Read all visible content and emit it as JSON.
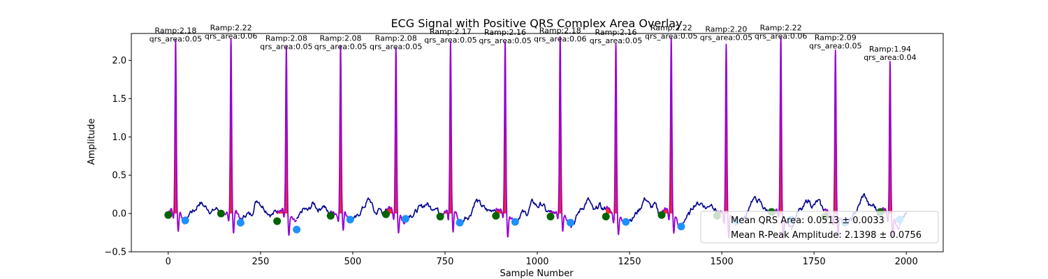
{
  "chart_data": {
    "type": "line",
    "title": "ECG Signal with Positive QRS Complex Area Overlay",
    "xlabel": "Sample Number",
    "ylabel": "Amplitude",
    "xlim": [
      -100,
      2100
    ],
    "ylim": [
      -0.5,
      2.35
    ],
    "xticks": [
      0,
      250,
      500,
      750,
      1000,
      1250,
      1500,
      1750,
      2000
    ],
    "yticks": [
      -0.5,
      0.0,
      0.5,
      1.0,
      1.5,
      2.0
    ],
    "xtick_labels": [
      "0",
      "250",
      "500",
      "750",
      "1000",
      "1250",
      "1500",
      "1750",
      "2000"
    ],
    "ytick_labels": [
      "−0.5",
      "0.0",
      "0.5",
      "1.0",
      "1.5",
      "2.0"
    ],
    "grid": false,
    "colors": {
      "signal": "#00008b",
      "qrs_segment": "#9400d3",
      "qrs_area": "#ff0000",
      "onset_marker": "#006400",
      "offset_marker": "#1e90ff"
    },
    "beats": [
      {
        "r_sample": 20,
        "r_amp": 2.18,
        "area": 0.05,
        "onset_x": 0,
        "onset_y": -0.02,
        "offset_x": 46,
        "offset_y": -0.09,
        "label_amp": "Ramp:2.18",
        "label_area": "qrs_area:0.05"
      },
      {
        "r_sample": 170,
        "r_amp": 2.22,
        "area": 0.06,
        "onset_x": 143,
        "onset_y": 0.0,
        "offset_x": 196,
        "offset_y": -0.12,
        "label_amp": "Ramp:2.22",
        "label_area": "qrs_area:0.06"
      },
      {
        "r_sample": 320,
        "r_amp": 2.08,
        "area": 0.05,
        "onset_x": 295,
        "onset_y": -0.1,
        "offset_x": 348,
        "offset_y": -0.21,
        "label_amp": "Ramp:2.08",
        "label_area": "qrs_area:0.05"
      },
      {
        "r_sample": 467,
        "r_amp": 2.08,
        "area": 0.05,
        "onset_x": 440,
        "onset_y": -0.03,
        "offset_x": 493,
        "offset_y": -0.08,
        "label_amp": "Ramp:2.08",
        "label_area": "qrs_area:0.05"
      },
      {
        "r_sample": 617,
        "r_amp": 2.08,
        "area": 0.05,
        "onset_x": 590,
        "onset_y": -0.01,
        "offset_x": 643,
        "offset_y": -0.07,
        "label_amp": "Ramp:2.08",
        "label_area": "qrs_area:0.05"
      },
      {
        "r_sample": 765,
        "r_amp": 2.17,
        "area": 0.05,
        "onset_x": 737,
        "onset_y": -0.04,
        "offset_x": 790,
        "offset_y": -0.12,
        "label_amp": "Ramp:2.17",
        "label_area": "qrs_area:0.05"
      },
      {
        "r_sample": 913,
        "r_amp": 2.16,
        "area": 0.05,
        "onset_x": 888,
        "onset_y": -0.03,
        "offset_x": 940,
        "offset_y": -0.11,
        "label_amp": "Ramp:2.16",
        "label_area": "qrs_area:0.05"
      },
      {
        "r_sample": 1062,
        "r_amp": 2.18,
        "area": 0.06,
        "onset_x": 1036,
        "onset_y": -0.04,
        "offset_x": 1090,
        "offset_y": -0.12,
        "label_amp": "Ramp:2.18",
        "label_area": "qrs_area:0.06"
      },
      {
        "r_sample": 1213,
        "r_amp": 2.16,
        "area": 0.05,
        "onset_x": 1186,
        "onset_y": -0.04,
        "offset_x": 1240,
        "offset_y": -0.11,
        "label_amp": "Ramp:2.16",
        "label_area": "qrs_area:0.05"
      },
      {
        "r_sample": 1363,
        "r_amp": 2.22,
        "area": 0.05,
        "onset_x": 1337,
        "onset_y": -0.02,
        "offset_x": 1390,
        "offset_y": -0.17,
        "label_amp": "Ramp:2.22",
        "label_area": "qrs_area:0.05"
      },
      {
        "r_sample": 1512,
        "r_amp": 2.2,
        "area": 0.05,
        "onset_x": 1487,
        "onset_y": -0.03,
        "offset_x": 1540,
        "offset_y": -0.1,
        "label_amp": "Ramp:2.20",
        "label_area": "qrs_area:0.05"
      },
      {
        "r_sample": 1660,
        "r_amp": 2.22,
        "area": 0.06,
        "onset_x": 1635,
        "onset_y": 0.02,
        "offset_x": 1688,
        "offset_y": -0.08,
        "label_amp": "Ramp:2.22",
        "label_area": "qrs_area:0.06"
      },
      {
        "r_sample": 1808,
        "r_amp": 2.09,
        "area": 0.05,
        "onset_x": 1780,
        "onset_y": -0.04,
        "offset_x": 1834,
        "offset_y": -0.12,
        "label_amp": "Ramp:2.09",
        "label_area": "qrs_area:0.05"
      },
      {
        "r_sample": 1956,
        "r_amp": 1.94,
        "area": 0.04,
        "onset_x": 1930,
        "onset_y": 0.02,
        "offset_x": 1982,
        "offset_y": -0.08,
        "label_amp": "Ramp:1.94",
        "label_area": "qrs_area:0.04"
      }
    ],
    "legend": {
      "placement": "lower-right",
      "entries": [
        "Mean QRS Area: 0.0513 ± 0.0033",
        "Mean R-Peak Amplitude: 2.1398 ± 0.0756"
      ]
    }
  }
}
